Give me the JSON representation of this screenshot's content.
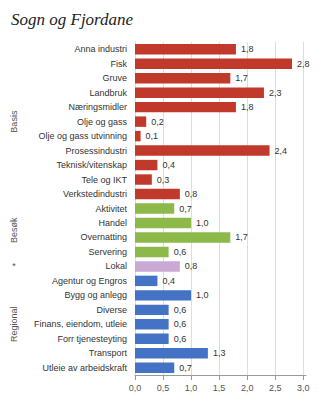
{
  "chart_data": {
    "type": "bar",
    "orientation": "horizontal",
    "title": "Sogn og Fjordane",
    "categories": [
      "Anna industri",
      "Fisk",
      "Gruve",
      "Landbruk",
      "Næringsmidler",
      "Olje og gass",
      "Olje og gass utvinning",
      "Prosessindustri",
      "Teknisk/vitenskap",
      "Tele og IKT",
      "Verkstedindustri",
      "Aktivitet",
      "Handel",
      "Overnatting",
      "Servering",
      "Lokal",
      "Agentur og Engros",
      "Bygg og anlegg",
      "Diverse",
      "Finans, eiendom, utleie",
      "Forr tjenesteyting",
      "Transport",
      "Utleie av arbeidskraft"
    ],
    "values": [
      1.8,
      2.8,
      1.7,
      2.3,
      1.8,
      0.2,
      0.1,
      2.4,
      0.4,
      0.3,
      0.8,
      0.7,
      1.0,
      1.7,
      0.6,
      0.8,
      0.4,
      1.0,
      0.6,
      0.6,
      0.6,
      1.3,
      0.7
    ],
    "value_labels": [
      "1,8",
      "2,8",
      "1,7",
      "2,3",
      "1,8",
      "0,2",
      "0,1",
      "2,4",
      "0,4",
      "0,3",
      "0,8",
      "0,7",
      "1,0",
      "1,7",
      "0,6",
      "0,8",
      "0,4",
      "1,0",
      "0,6",
      "0,6",
      "0,6",
      "1,3",
      "0,7"
    ],
    "data_labels": true,
    "colors": [
      "#c0392b",
      "#c0392b",
      "#c0392b",
      "#c0392b",
      "#c0392b",
      "#c0392b",
      "#c0392b",
      "#c0392b",
      "#c0392b",
      "#c0392b",
      "#c0392b",
      "#8db84a",
      "#8db84a",
      "#8db84a",
      "#8db84a",
      "#c8aad4",
      "#4472c4",
      "#4472c4",
      "#4472c4",
      "#4472c4",
      "#4472c4",
      "#4472c4",
      "#4472c4"
    ],
    "xlim": [
      0,
      3.05
    ],
    "xticks": [
      {
        "value": 0.0,
        "label": "0,0"
      },
      {
        "value": 0.5,
        "label": "0,5"
      },
      {
        "value": 1.0,
        "label": "1,0"
      },
      {
        "value": 1.5,
        "label": "1,5"
      },
      {
        "value": 2.0,
        "label": "2,0"
      },
      {
        "value": 2.5,
        "label": "2,5"
      },
      {
        "value": 3.0,
        "label": "3,0"
      }
    ],
    "grid": true,
    "annotations": [
      {
        "text": "Basis",
        "from": "Anna industri",
        "to": "Verkstedindustri"
      },
      {
        "text": "Besøk",
        "from": "Aktivitet",
        "to": "Servering"
      },
      {
        "text": "*",
        "from": "Lokal",
        "to": "Lokal"
      },
      {
        "text": "Regional",
        "from": "Agentur og Engros",
        "to": "Utleie av arbeidskraft"
      }
    ]
  }
}
